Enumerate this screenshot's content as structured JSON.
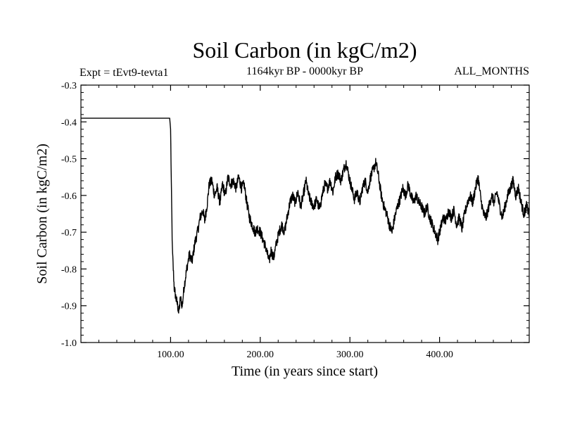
{
  "chart_data": {
    "type": "line",
    "title": "Soil Carbon (in kgC/m2)",
    "subtitle_left": "Expt = tEvt9-tevta1",
    "subtitle_center": "1164kyr BP - 0000kyr BP",
    "subtitle_right": "ALL_MONTHS",
    "xlabel": "Time (in years since start)",
    "ylabel": "Soil Carbon (in kgC/m2)",
    "xlim": [
      0,
      500
    ],
    "ylim": [
      -1.0,
      -0.3
    ],
    "x_ticks": [
      100,
      200,
      300,
      400
    ],
    "x_tick_labels": [
      "100.00",
      "200.00",
      "300.00",
      "400.00"
    ],
    "y_ticks": [
      -1.0,
      -0.9,
      -0.8,
      -0.7,
      -0.6,
      -0.5,
      -0.4,
      -0.3
    ],
    "y_tick_labels": [
      "-1.0",
      "-0.9",
      "-0.8",
      "-0.7",
      "-0.6",
      "-0.5",
      "-0.4",
      "-0.3"
    ],
    "line_color": "#000000",
    "series": [
      {
        "name": "Soil Carbon",
        "points": [
          [
            0,
            -0.39
          ],
          [
            99,
            -0.39
          ],
          [
            100,
            -0.42
          ],
          [
            101,
            -0.6
          ],
          [
            102,
            -0.75
          ],
          [
            104,
            -0.85
          ],
          [
            106,
            -0.88
          ],
          [
            108,
            -0.9
          ],
          [
            109,
            -0.92
          ],
          [
            111,
            -0.88
          ],
          [
            113,
            -0.9
          ],
          [
            115,
            -0.85
          ],
          [
            118,
            -0.8
          ],
          [
            121,
            -0.76
          ],
          [
            124,
            -0.78
          ],
          [
            127,
            -0.73
          ],
          [
            130,
            -0.7
          ],
          [
            133,
            -0.66
          ],
          [
            136,
            -0.64
          ],
          [
            138,
            -0.67
          ],
          [
            141,
            -0.62
          ],
          [
            143,
            -0.57
          ],
          [
            146,
            -0.56
          ],
          [
            149,
            -0.6
          ],
          [
            152,
            -0.58
          ],
          [
            155,
            -0.62
          ],
          [
            158,
            -0.57
          ],
          [
            161,
            -0.6
          ],
          [
            164,
            -0.55
          ],
          [
            167,
            -0.57
          ],
          [
            170,
            -0.56
          ],
          [
            173,
            -0.58
          ],
          [
            176,
            -0.55
          ],
          [
            179,
            -0.58
          ],
          [
            182,
            -0.57
          ],
          [
            185,
            -0.62
          ],
          [
            188,
            -0.66
          ],
          [
            191,
            -0.68
          ],
          [
            194,
            -0.7
          ],
          [
            197,
            -0.69
          ],
          [
            200,
            -0.7
          ],
          [
            203,
            -0.72
          ],
          [
            206,
            -0.74
          ],
          [
            208,
            -0.76
          ],
          [
            210,
            -0.78
          ],
          [
            212,
            -0.75
          ],
          [
            215,
            -0.77
          ],
          [
            218,
            -0.73
          ],
          [
            221,
            -0.7
          ],
          [
            224,
            -0.68
          ],
          [
            227,
            -0.7
          ],
          [
            230,
            -0.66
          ],
          [
            233,
            -0.62
          ],
          [
            236,
            -0.6
          ],
          [
            239,
            -0.62
          ],
          [
            242,
            -0.59
          ],
          [
            245,
            -0.63
          ],
          [
            248,
            -0.6
          ],
          [
            251,
            -0.56
          ],
          [
            254,
            -0.6
          ],
          [
            257,
            -0.62
          ],
          [
            260,
            -0.63
          ],
          [
            263,
            -0.61
          ],
          [
            266,
            -0.64
          ],
          [
            269,
            -0.6
          ],
          [
            272,
            -0.57
          ],
          [
            275,
            -0.58
          ],
          [
            278,
            -0.56
          ],
          [
            281,
            -0.59
          ],
          [
            284,
            -0.55
          ],
          [
            287,
            -0.54
          ],
          [
            290,
            -0.56
          ],
          [
            293,
            -0.53
          ],
          [
            296,
            -0.51
          ],
          [
            299,
            -0.55
          ],
          [
            302,
            -0.58
          ],
          [
            305,
            -0.61
          ],
          [
            308,
            -0.59
          ],
          [
            311,
            -0.62
          ],
          [
            314,
            -0.58
          ],
          [
            317,
            -0.56
          ],
          [
            320,
            -0.59
          ],
          [
            323,
            -0.55
          ],
          [
            326,
            -0.53
          ],
          [
            329,
            -0.51
          ],
          [
            332,
            -0.55
          ],
          [
            335,
            -0.6
          ],
          [
            338,
            -0.63
          ],
          [
            341,
            -0.65
          ],
          [
            344,
            -0.68
          ],
          [
            347,
            -0.7
          ],
          [
            350,
            -0.66
          ],
          [
            353,
            -0.63
          ],
          [
            356,
            -0.61
          ],
          [
            359,
            -0.58
          ],
          [
            362,
            -0.6
          ],
          [
            365,
            -0.57
          ],
          [
            368,
            -0.6
          ],
          [
            371,
            -0.62
          ],
          [
            374,
            -0.6
          ],
          [
            377,
            -0.62
          ],
          [
            380,
            -0.63
          ],
          [
            383,
            -0.65
          ],
          [
            386,
            -0.63
          ],
          [
            389,
            -0.66
          ],
          [
            392,
            -0.68
          ],
          [
            395,
            -0.7
          ],
          [
            398,
            -0.72
          ],
          [
            401,
            -0.69
          ],
          [
            404,
            -0.66
          ],
          [
            407,
            -0.67
          ],
          [
            410,
            -0.64
          ],
          [
            413,
            -0.66
          ],
          [
            416,
            -0.64
          ],
          [
            419,
            -0.68
          ],
          [
            422,
            -0.66
          ],
          [
            425,
            -0.69
          ],
          [
            428,
            -0.65
          ],
          [
            431,
            -0.62
          ],
          [
            434,
            -0.6
          ],
          [
            437,
            -0.62
          ],
          [
            440,
            -0.58
          ],
          [
            443,
            -0.55
          ],
          [
            446,
            -0.61
          ],
          [
            449,
            -0.65
          ],
          [
            452,
            -0.66
          ],
          [
            455,
            -0.63
          ],
          [
            458,
            -0.6
          ],
          [
            461,
            -0.62
          ],
          [
            464,
            -0.59
          ],
          [
            467,
            -0.63
          ],
          [
            470,
            -0.66
          ],
          [
            473,
            -0.63
          ],
          [
            476,
            -0.6
          ],
          [
            479,
            -0.58
          ],
          [
            482,
            -0.56
          ],
          [
            485,
            -0.6
          ],
          [
            488,
            -0.58
          ],
          [
            491,
            -0.62
          ],
          [
            494,
            -0.65
          ],
          [
            497,
            -0.63
          ],
          [
            500,
            -0.65
          ]
        ]
      }
    ]
  }
}
